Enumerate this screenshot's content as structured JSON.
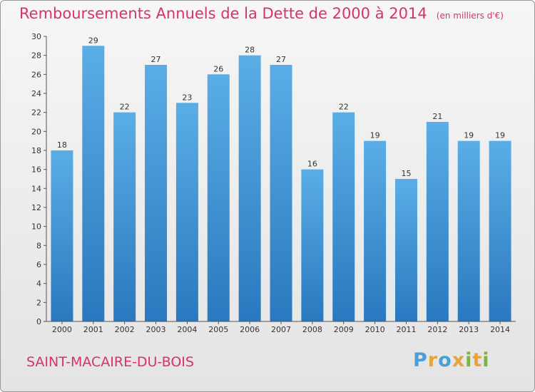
{
  "chart_data": {
    "type": "bar",
    "title": "Remboursements Annuels de la Dette de 2000 à 2014",
    "unit_label": "(en milliers d'€)",
    "categories": [
      "2000",
      "2001",
      "2002",
      "2003",
      "2004",
      "2005",
      "2006",
      "2007",
      "2008",
      "2009",
      "2010",
      "2011",
      "2012",
      "2013",
      "2014"
    ],
    "values": [
      18,
      29,
      22,
      27,
      23,
      26,
      28,
      27,
      16,
      22,
      19,
      15,
      21,
      19,
      19
    ],
    "ylim": [
      0,
      30
    ],
    "y_ticks": [
      0,
      2,
      4,
      6,
      8,
      10,
      12,
      14,
      16,
      18,
      20,
      22,
      24,
      26,
      28,
      30
    ],
    "grid": false,
    "legend": "none",
    "bar_color": "#3d8fd6"
  },
  "commune": "SAINT-MACAIRE-DU-BOIS",
  "logo": {
    "letters": [
      "P",
      "r",
      "o",
      "x",
      "i",
      "t",
      "i"
    ],
    "colors": [
      "#4a9fd8",
      "#e8a33a",
      "#4a9fd8",
      "#e8a33a",
      "#7cb342",
      "#e8a33a",
      "#7cb342"
    ]
  },
  "colors": {
    "title": "#d6336c",
    "bar_top": "#5aaee6",
    "bar_bottom": "#2a78bf"
  }
}
